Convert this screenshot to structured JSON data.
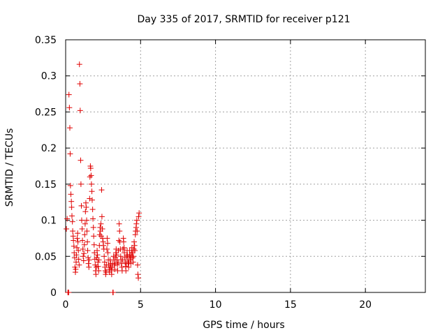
{
  "chart_data": {
    "type": "scatter",
    "title": "Day 335 of 2017, SRMTID for receiver p121",
    "xlabel": "GPS time / hours",
    "ylabel": "SRMTID / TECUs",
    "xlim": [
      0,
      24
    ],
    "ylim": [
      0,
      0.35
    ],
    "xticks": [
      0,
      5,
      10,
      15,
      20
    ],
    "xtick_labels": [
      "0",
      "5",
      "10",
      "15",
      "20"
    ],
    "yticks": [
      0,
      0.05,
      0.1,
      0.15,
      0.2,
      0.25,
      0.3,
      0.35
    ],
    "ytick_labels": [
      "0",
      "0.05",
      "0.1",
      "0.15",
      "0.2",
      "0.25",
      "0.3",
      "0.35"
    ],
    "grid": true,
    "marker": "+",
    "series": [
      {
        "name": "SRMTID",
        "color": "#e00000",
        "points": [
          [
            0.05,
            0.088
          ],
          [
            0.1,
            0.102
          ],
          [
            0.15,
            0.0
          ],
          [
            0.18,
            0.0
          ],
          [
            0.2,
            0.0
          ],
          [
            0.22,
            0.274
          ],
          [
            0.25,
            0.256
          ],
          [
            0.28,
            0.228
          ],
          [
            0.3,
            0.192
          ],
          [
            0.32,
            0.148
          ],
          [
            0.35,
            0.136
          ],
          [
            0.38,
            0.126
          ],
          [
            0.4,
            0.118
          ],
          [
            0.42,
            0.106
          ],
          [
            0.45,
            0.098
          ],
          [
            0.47,
            0.085
          ],
          [
            0.5,
            0.078
          ],
          [
            0.52,
            0.072
          ],
          [
            0.55,
            0.064
          ],
          [
            0.57,
            0.055
          ],
          [
            0.6,
            0.048
          ],
          [
            0.62,
            0.035
          ],
          [
            0.65,
            0.028
          ],
          [
            0.67,
            0.032
          ],
          [
            0.7,
            0.042
          ],
          [
            0.72,
            0.052
          ],
          [
            0.75,
            0.062
          ],
          [
            0.77,
            0.075
          ],
          [
            0.8,
            0.082
          ],
          [
            0.82,
            0.07
          ],
          [
            0.85,
            0.058
          ],
          [
            0.87,
            0.046
          ],
          [
            0.9,
            0.038
          ],
          [
            0.92,
            0.316
          ],
          [
            0.95,
            0.289
          ],
          [
            0.97,
            0.252
          ],
          [
            1.0,
            0.183
          ],
          [
            1.02,
            0.15
          ],
          [
            1.05,
            0.12
          ],
          [
            1.07,
            0.1
          ],
          [
            1.1,
            0.088
          ],
          [
            1.12,
            0.072
          ],
          [
            1.15,
            0.06
          ],
          [
            1.17,
            0.05
          ],
          [
            1.2,
            0.044
          ],
          [
            1.22,
            0.054
          ],
          [
            1.25,
            0.066
          ],
          [
            1.27,
            0.08
          ],
          [
            1.3,
            0.095
          ],
          [
            1.32,
            0.112
          ],
          [
            1.35,
            0.124
          ],
          [
            1.37,
            0.118
          ],
          [
            1.4,
            0.1
          ],
          [
            1.42,
            0.085
          ],
          [
            1.45,
            0.07
          ],
          [
            1.47,
            0.058
          ],
          [
            1.5,
            0.048
          ],
          [
            1.52,
            0.04
          ],
          [
            1.55,
            0.035
          ],
          [
            1.57,
            0.045
          ],
          [
            1.6,
            0.13
          ],
          [
            1.62,
            0.16
          ],
          [
            1.65,
            0.175
          ],
          [
            1.67,
            0.172
          ],
          [
            1.7,
            0.162
          ],
          [
            1.72,
            0.15
          ],
          [
            1.75,
            0.14
          ],
          [
            1.77,
            0.128
          ],
          [
            1.8,
            0.115
          ],
          [
            1.82,
            0.102
          ],
          [
            1.85,
            0.09
          ],
          [
            1.87,
            0.078
          ],
          [
            1.9,
            0.066
          ],
          [
            1.92,
            0.055
          ],
          [
            1.95,
            0.046
          ],
          [
            1.97,
            0.038
          ],
          [
            2.0,
            0.03
          ],
          [
            2.02,
            0.025
          ],
          [
            2.05,
            0.035
          ],
          [
            2.07,
            0.048
          ],
          [
            2.1,
            0.058
          ],
          [
            2.12,
            0.052
          ],
          [
            2.15,
            0.042
          ],
          [
            2.17,
            0.036
          ],
          [
            2.2,
            0.03
          ],
          [
            2.22,
            0.045
          ],
          [
            2.25,
            0.065
          ],
          [
            2.27,
            0.08
          ],
          [
            2.3,
            0.09
          ],
          [
            2.32,
            0.085
          ],
          [
            2.35,
            0.095
          ],
          [
            2.37,
            0.078
          ],
          [
            2.4,
            0.142
          ],
          [
            2.42,
            0.105
          ],
          [
            2.45,
            0.088
          ],
          [
            2.47,
            0.075
          ],
          [
            2.5,
            0.07
          ],
          [
            2.52,
            0.065
          ],
          [
            2.55,
            0.06
          ],
          [
            2.57,
            0.05
          ],
          [
            2.6,
            0.042
          ],
          [
            2.62,
            0.035
          ],
          [
            2.65,
            0.03
          ],
          [
            2.67,
            0.025
          ],
          [
            2.7,
            0.028
          ],
          [
            2.72,
            0.038
          ],
          [
            2.75,
            0.06
          ],
          [
            2.77,
            0.075
          ],
          [
            2.8,
            0.068
          ],
          [
            2.82,
            0.055
          ],
          [
            2.85,
            0.045
          ],
          [
            2.87,
            0.038
          ],
          [
            2.9,
            0.032
          ],
          [
            2.92,
            0.028
          ],
          [
            2.95,
            0.035
          ],
          [
            2.97,
            0.045
          ],
          [
            3.0,
            0.04
          ],
          [
            3.02,
            0.035
          ],
          [
            3.05,
            0.03
          ],
          [
            3.07,
            0.025
          ],
          [
            3.1,
            0.035
          ],
          [
            3.12,
            0.04
          ],
          [
            3.15,
            0.0
          ],
          [
            3.17,
            0.0
          ],
          [
            3.2,
            0.05
          ],
          [
            3.22,
            0.045
          ],
          [
            3.25,
            0.038
          ],
          [
            3.27,
            0.032
          ],
          [
            3.3,
            0.04
          ],
          [
            3.32,
            0.048
          ],
          [
            3.35,
            0.055
          ],
          [
            3.37,
            0.06
          ],
          [
            3.4,
            0.052
          ],
          [
            3.42,
            0.045
          ],
          [
            3.45,
            0.038
          ],
          [
            3.47,
            0.03
          ],
          [
            3.5,
            0.042
          ],
          [
            3.52,
            0.058
          ],
          [
            3.55,
            0.072
          ],
          [
            3.57,
            0.095
          ],
          [
            3.6,
            0.085
          ],
          [
            3.62,
            0.07
          ],
          [
            3.65,
            0.06
          ],
          [
            3.67,
            0.05
          ],
          [
            3.7,
            0.045
          ],
          [
            3.72,
            0.04
          ],
          [
            3.75,
            0.035
          ],
          [
            3.77,
            0.03
          ],
          [
            3.8,
            0.045
          ],
          [
            3.82,
            0.06
          ],
          [
            3.85,
            0.075
          ],
          [
            3.87,
            0.07
          ],
          [
            3.9,
            0.062
          ],
          [
            3.92,
            0.055
          ],
          [
            3.95,
            0.048
          ],
          [
            3.97,
            0.042
          ],
          [
            4.0,
            0.036
          ],
          [
            4.02,
            0.03
          ],
          [
            4.05,
            0.04
          ],
          [
            4.07,
            0.05
          ],
          [
            4.1,
            0.058
          ],
          [
            4.12,
            0.052
          ],
          [
            4.15,
            0.045
          ],
          [
            4.17,
            0.04
          ],
          [
            4.2,
            0.035
          ],
          [
            4.22,
            0.042
          ],
          [
            4.25,
            0.05
          ],
          [
            4.27,
            0.058
          ],
          [
            4.3,
            0.052
          ],
          [
            4.32,
            0.045
          ],
          [
            4.35,
            0.04
          ],
          [
            4.37,
            0.048
          ],
          [
            4.4,
            0.055
          ],
          [
            4.42,
            0.062
          ],
          [
            4.45,
            0.055
          ],
          [
            4.47,
            0.048
          ],
          [
            4.5,
            0.042
          ],
          [
            4.52,
            0.05
          ],
          [
            4.55,
            0.06
          ],
          [
            4.57,
            0.07
          ],
          [
            4.6,
            0.065
          ],
          [
            4.62,
            0.058
          ],
          [
            4.65,
            0.08
          ],
          [
            4.67,
            0.085
          ],
          [
            4.7,
            0.09
          ],
          [
            4.72,
            0.095
          ],
          [
            4.75,
            0.1
          ],
          [
            4.77,
            0.085
          ],
          [
            4.8,
            0.038
          ],
          [
            4.82,
            0.025
          ],
          [
            4.85,
            0.02
          ],
          [
            4.87,
            0.105
          ],
          [
            4.9,
            0.11
          ]
        ]
      }
    ]
  }
}
